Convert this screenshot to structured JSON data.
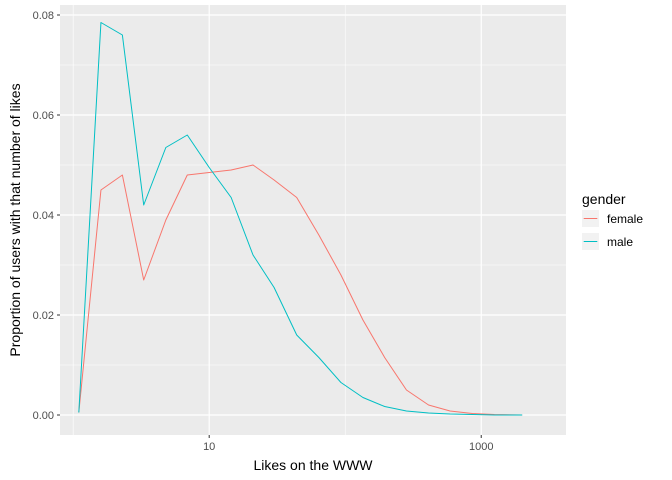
{
  "chart_data": {
    "type": "line",
    "title": "",
    "xlabel": "Likes on the WWW",
    "ylabel": "Proportion of users with that number of likes",
    "x_scale": "log10",
    "xlim": [
      0.8,
      4200
    ],
    "ylim": [
      -0.004,
      0.082
    ],
    "x_ticks": [
      {
        "value": 10,
        "label": "10"
      },
      {
        "value": 1000,
        "label": "1000"
      }
    ],
    "x_minor_ticks": [
      1,
      100,
      10000
    ],
    "y_ticks": [
      {
        "value": 0.0,
        "label": "0.00"
      },
      {
        "value": 0.02,
        "label": "0.02"
      },
      {
        "value": 0.04,
        "label": "0.04"
      },
      {
        "value": 0.06,
        "label": "0.06"
      },
      {
        "value": 0.08,
        "label": "0.08"
      }
    ],
    "grid": true,
    "legend": {
      "title": "gender",
      "placement": "right"
    },
    "series": [
      {
        "name": "female",
        "color": "#F8766D",
        "points": [
          [
            1.1,
            0.0005
          ],
          [
            1.6,
            0.045
          ],
          [
            2.3,
            0.048
          ],
          [
            3.3,
            0.027
          ],
          [
            4.8,
            0.039
          ],
          [
            6.9,
            0.048
          ],
          [
            10,
            0.0485
          ],
          [
            14.5,
            0.049
          ],
          [
            21,
            0.05
          ],
          [
            30,
            0.047
          ],
          [
            44,
            0.0435
          ],
          [
            64,
            0.036
          ],
          [
            93,
            0.028
          ],
          [
            135,
            0.019
          ],
          [
            195,
            0.0115
          ],
          [
            282,
            0.005
          ],
          [
            410,
            0.002
          ],
          [
            590,
            0.0008
          ],
          [
            860,
            0.0003
          ],
          [
            1250,
            0.0001
          ],
          [
            2000,
            0.0
          ]
        ]
      },
      {
        "name": "male",
        "color": "#00BFC4",
        "points": [
          [
            1.1,
            0.0005
          ],
          [
            1.6,
            0.0785
          ],
          [
            2.3,
            0.076
          ],
          [
            3.3,
            0.042
          ],
          [
            4.8,
            0.0535
          ],
          [
            6.9,
            0.056
          ],
          [
            10,
            0.0495
          ],
          [
            14.5,
            0.0435
          ],
          [
            21,
            0.032
          ],
          [
            30,
            0.0255
          ],
          [
            44,
            0.016
          ],
          [
            64,
            0.0115
          ],
          [
            93,
            0.0065
          ],
          [
            135,
            0.0035
          ],
          [
            195,
            0.0017
          ],
          [
            282,
            0.0008
          ],
          [
            410,
            0.0004
          ],
          [
            590,
            0.0002
          ],
          [
            860,
            0.0001
          ],
          [
            1250,
            0.0
          ],
          [
            2000,
            0.0
          ]
        ]
      }
    ]
  }
}
